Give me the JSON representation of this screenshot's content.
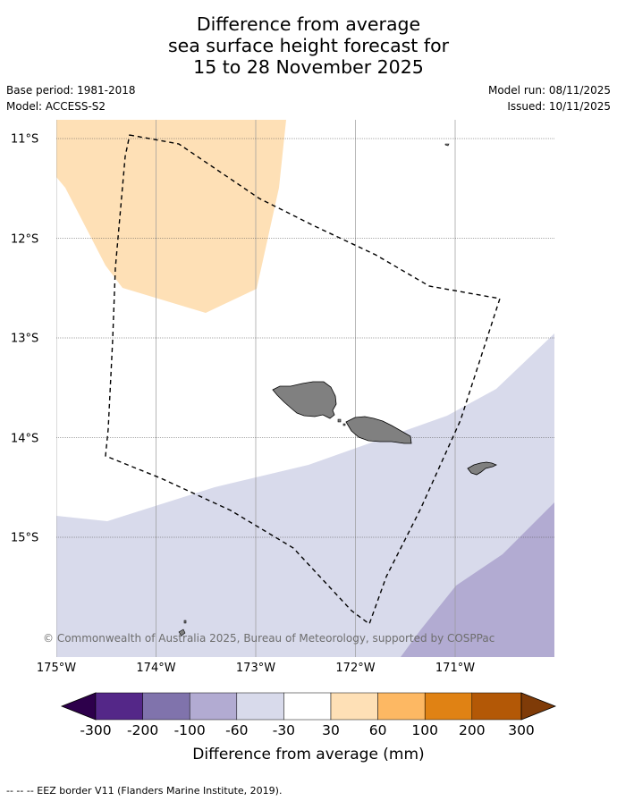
{
  "title": {
    "line1": "Difference from average",
    "line2": "sea surface height forecast for",
    "line3": "15 to 28 November 2025"
  },
  "meta": {
    "base_period": "Base period: 1981-2018",
    "model": "Model: ACCESS-S2",
    "model_run": "Model run: 08/11/2025",
    "issued": "Issued: 10/11/2025"
  },
  "map": {
    "lon_ticks": [
      {
        "value": -175,
        "label": "175°W"
      },
      {
        "value": -174,
        "label": "174°W"
      },
      {
        "value": -173,
        "label": "173°W"
      },
      {
        "value": -172,
        "label": "172°W"
      },
      {
        "value": -171,
        "label": "171°W"
      }
    ],
    "lat_ticks": [
      {
        "value": -11,
        "label": "11°S"
      },
      {
        "value": -12,
        "label": "12°S"
      },
      {
        "value": -13,
        "label": "13°S"
      },
      {
        "value": -14,
        "label": "14°S"
      },
      {
        "value": -15,
        "label": "15°S"
      }
    ],
    "copyright": "© Commonwealth of Australia 2025, Bureau of Meteorology, supported by COSPPac"
  },
  "colorbar": {
    "title": "Difference from average (mm)",
    "labels": [
      "-300",
      "-200",
      "-100",
      "-60",
      "-30",
      "30",
      "60",
      "100",
      "200",
      "300"
    ],
    "colors": {
      "under": "#2d004b",
      "bins": [
        "#542788",
        "#8073ac",
        "#b2abd2",
        "#d8daeb",
        "#ffffff",
        "#fee0b6",
        "#fdb863",
        "#e08214",
        "#b35806"
      ],
      "over": "#7f3b08"
    }
  },
  "footnote": "--  --  -- EEZ border V11 (Flanders Marine Institute, 2019).",
  "colors": {
    "orange_region": "#fee0b6",
    "light_purple_region": "#d8daeb",
    "mid_purple_region": "#b2abd2",
    "land": "#808080",
    "grid": "#999999"
  }
}
